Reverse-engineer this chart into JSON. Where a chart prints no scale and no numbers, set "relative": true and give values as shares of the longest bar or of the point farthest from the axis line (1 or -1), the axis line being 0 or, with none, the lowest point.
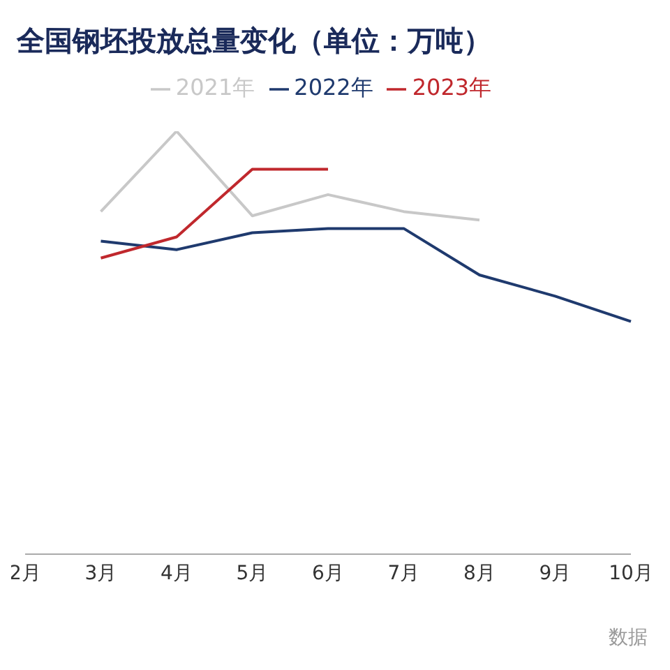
{
  "chart_data": {
    "type": "line",
    "title": "全国钢坯投放总量变化（单位：万吨）",
    "categories": [
      "2月",
      "3月",
      "4月",
      "5月",
      "6月",
      "7月",
      "8月",
      "9月",
      "10月"
    ],
    "relative": true,
    "legend": "top",
    "grid": false,
    "marker": "none",
    "line_style": "solid",
    "annotations": [
      "数据"
    ],
    "series": [
      {
        "name": "2021年",
        "color": "#c8c8c8",
        "values": [
          null,
          0.81,
          1.0,
          0.8,
          0.85,
          0.81,
          0.79,
          null,
          null
        ]
      },
      {
        "name": "2022年",
        "color": "#1f3a6e",
        "values": [
          null,
          0.74,
          0.72,
          0.76,
          0.77,
          0.77,
          0.66,
          0.61,
          0.55
        ]
      },
      {
        "name": "2023年",
        "color": "#c0282d",
        "values": [
          null,
          0.7,
          0.75,
          0.91,
          0.91,
          null,
          null,
          null,
          null
        ]
      }
    ]
  }
}
